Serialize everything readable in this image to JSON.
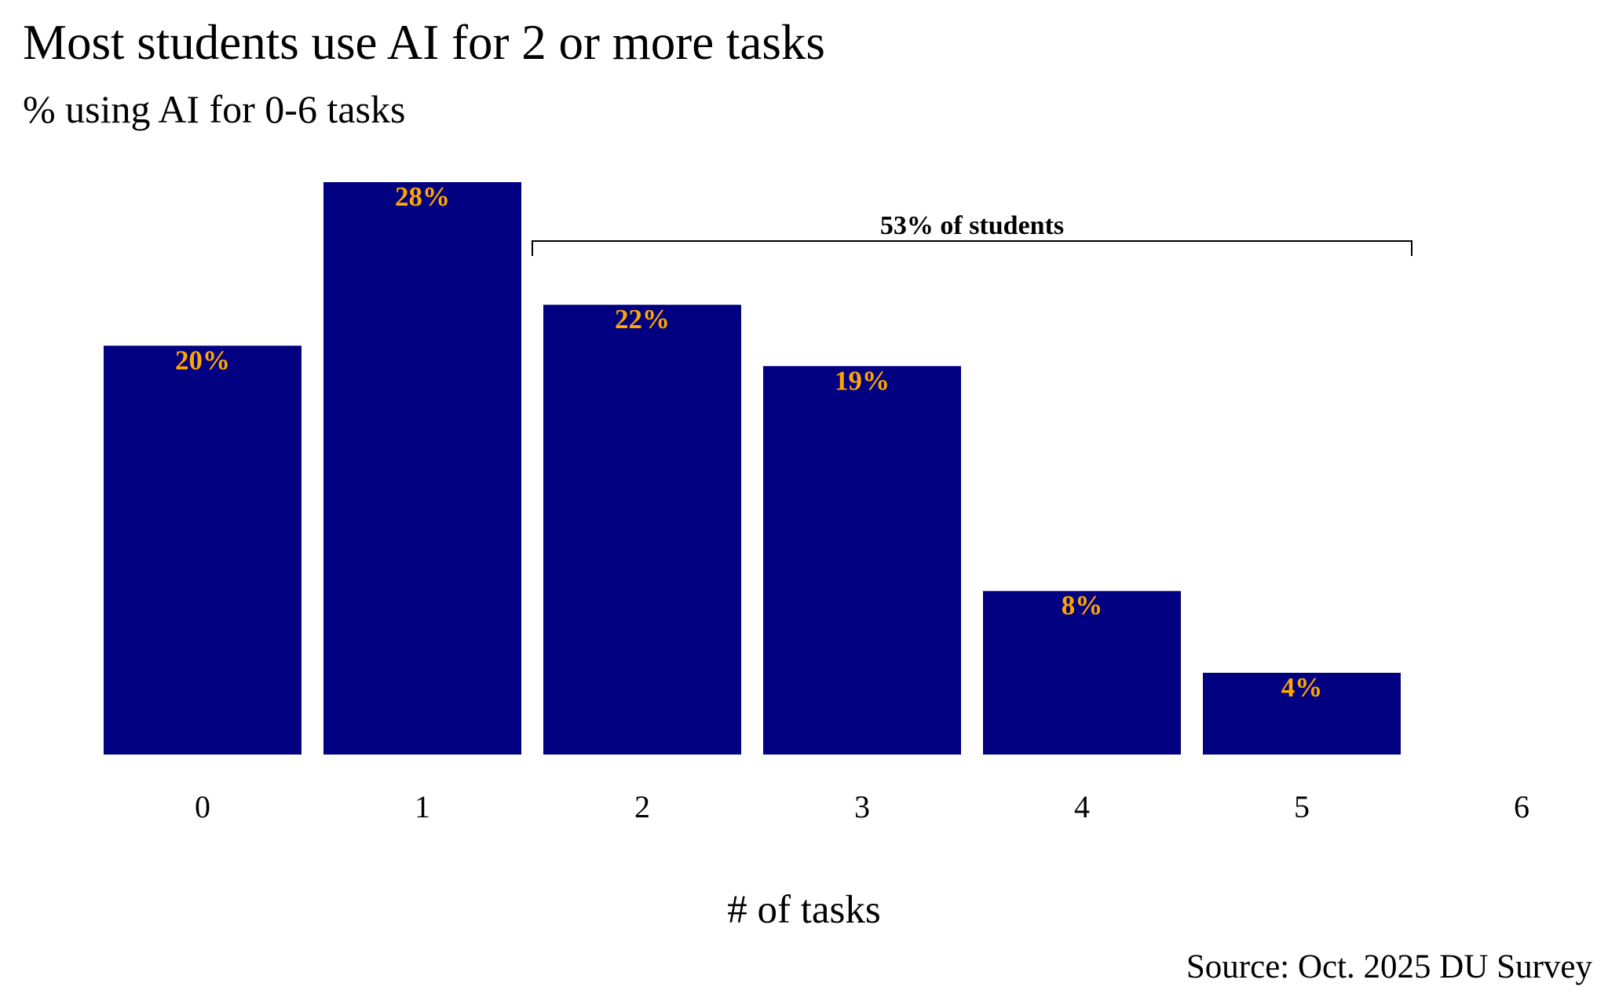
{
  "chart_data": {
    "type": "bar",
    "title": "Most students use AI for 2 or more tasks",
    "subtitle": "% using AI for 0-6 tasks",
    "xlabel": "# of tasks",
    "ylabel": "",
    "categories": [
      "0",
      "1",
      "2",
      "3",
      "4",
      "5",
      "6"
    ],
    "values": [
      20,
      28,
      22,
      19,
      8,
      4,
      0
    ],
    "value_labels": [
      "20%",
      "28%",
      "22%",
      "19%",
      "8%",
      "4%",
      ""
    ],
    "ylim": [
      0,
      28
    ],
    "grid": false,
    "legend": "none",
    "bar_color": "#000080",
    "label_color": "#FFA500",
    "annotation": {
      "text": "53% of students",
      "from_category": "2",
      "to_category": "5"
    },
    "source": "Source: Oct. 2025 DU Survey"
  }
}
